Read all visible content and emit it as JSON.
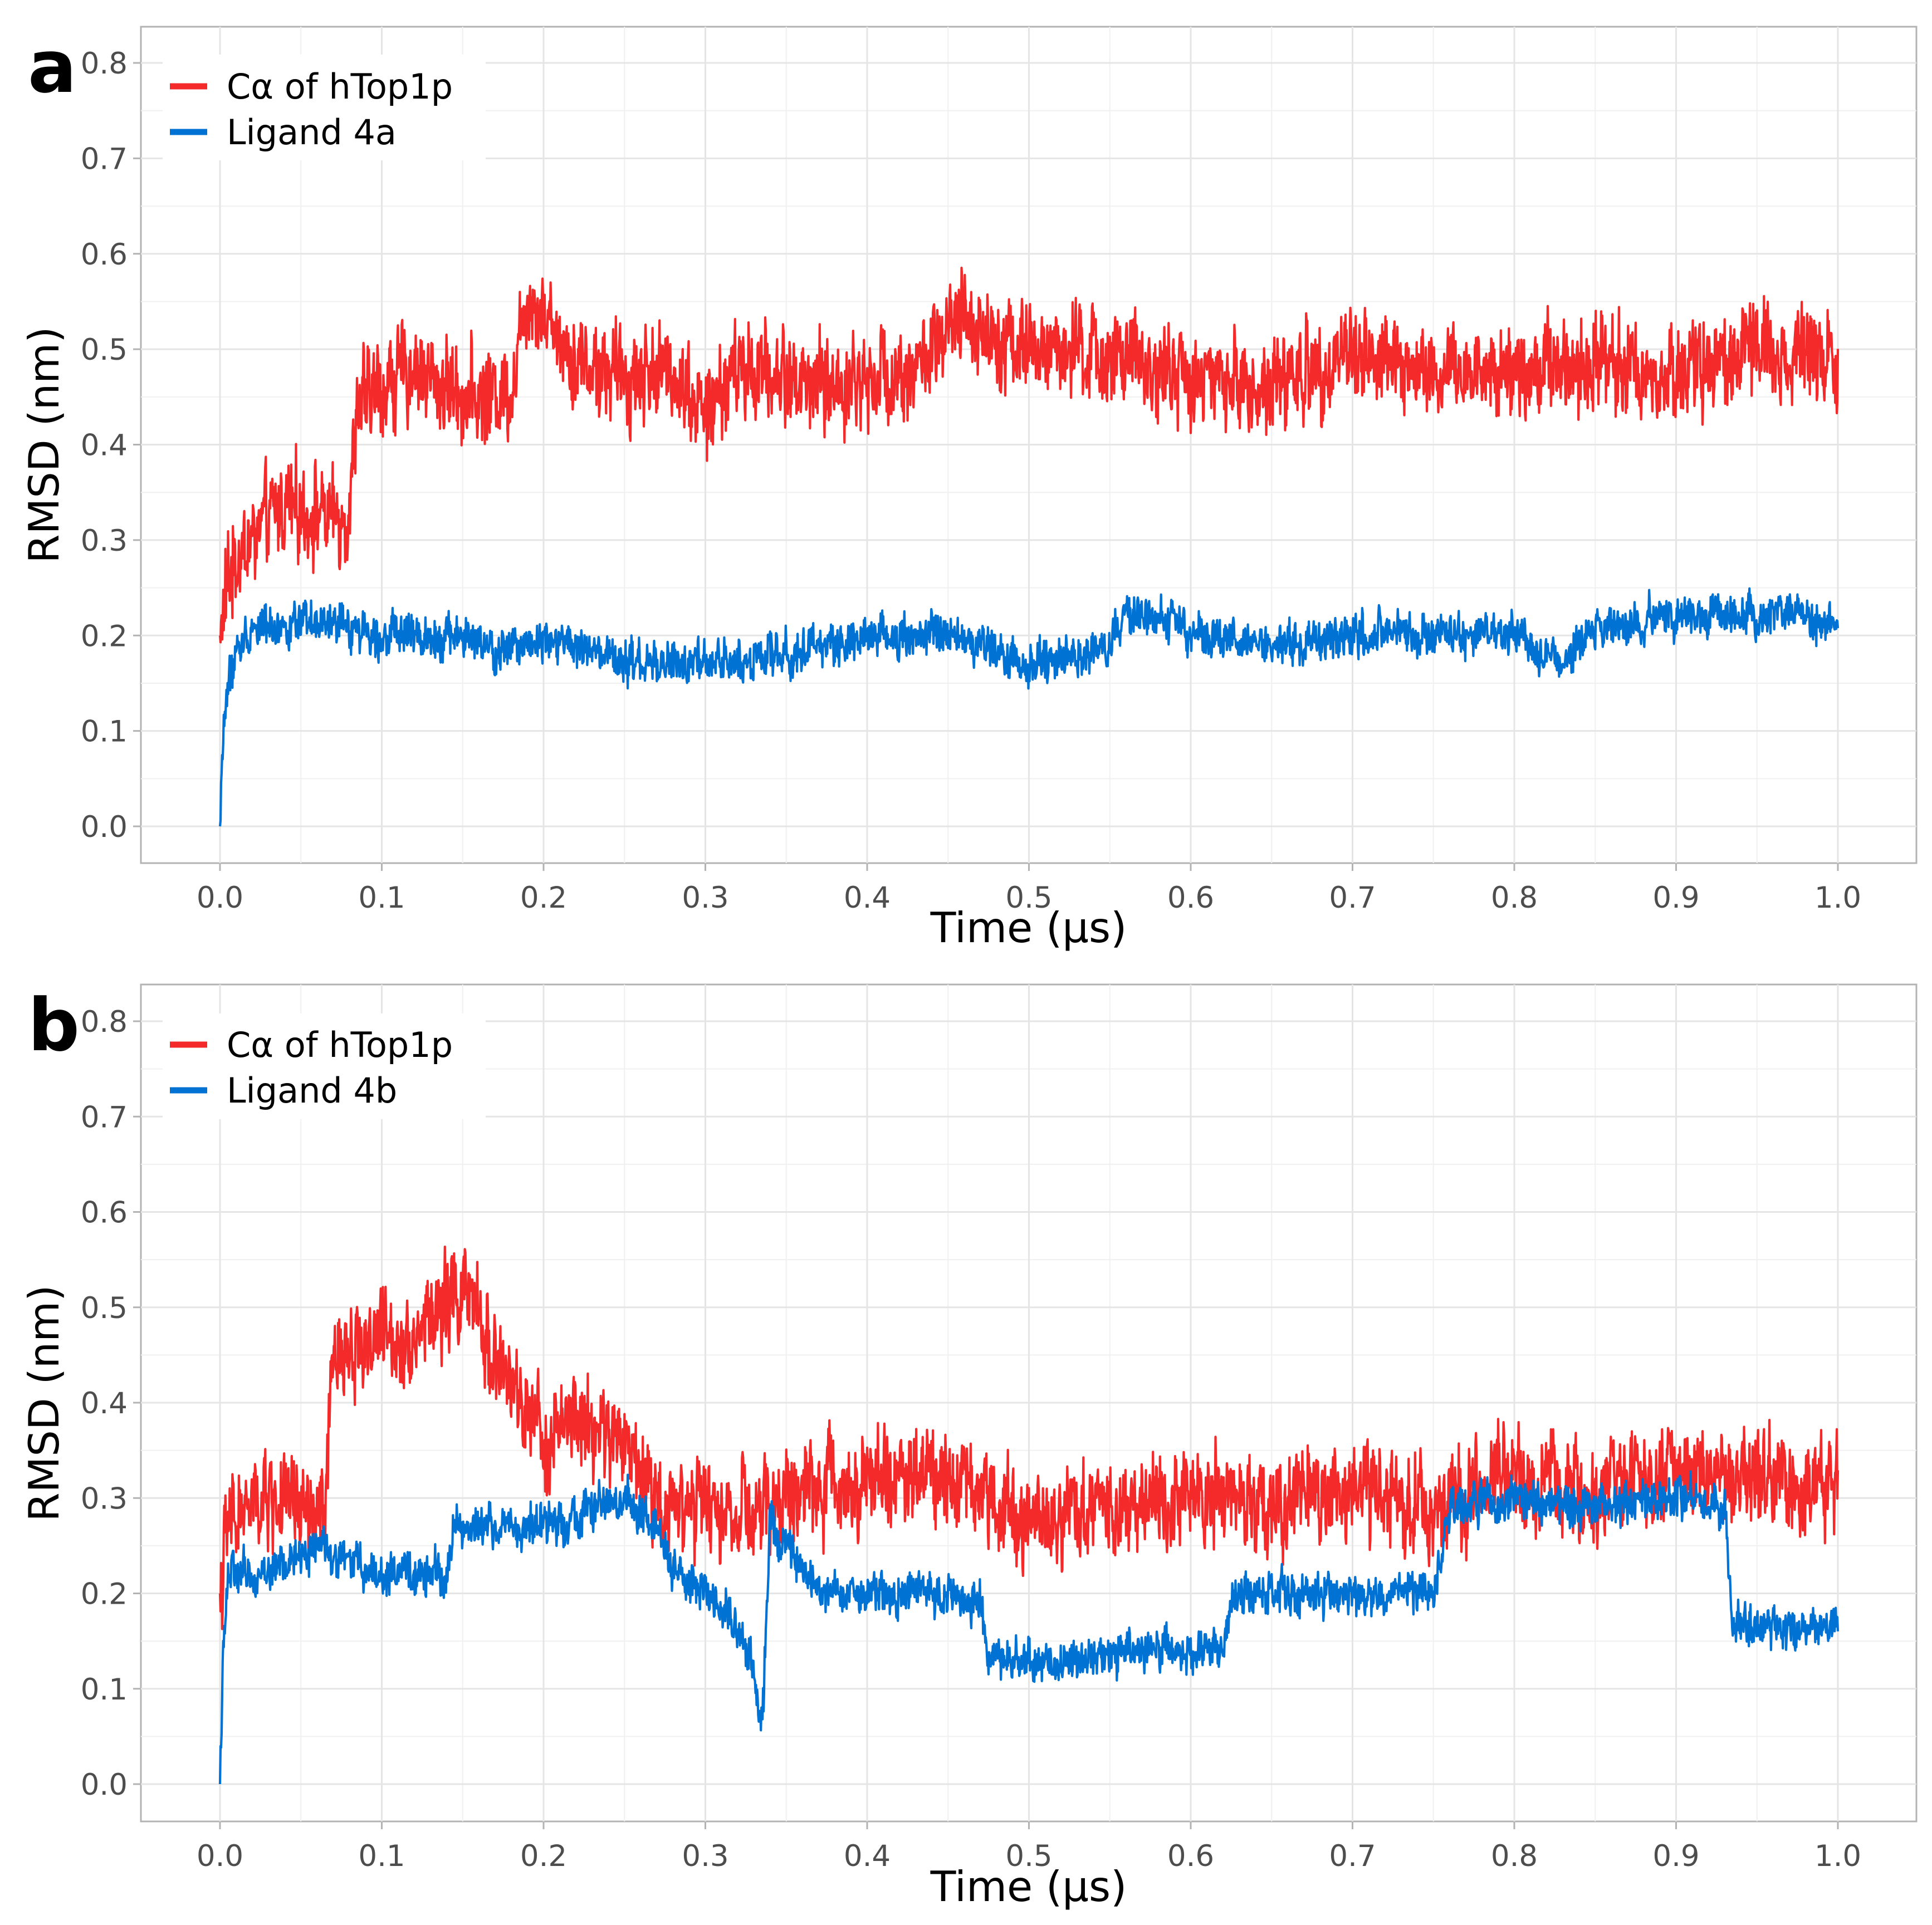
{
  "chart_data": [
    {
      "panel_label": "a",
      "type": "line",
      "xlabel": "Time (µs)",
      "ylabel": "RMSD (nm)",
      "xlim": [
        0.0,
        1.0
      ],
      "ylim": [
        0.0,
        0.8
      ],
      "x_ticks": [
        "0.0",
        "0.1",
        "0.2",
        "0.3",
        "0.4",
        "0.5",
        "0.6",
        "0.7",
        "0.8",
        "0.9",
        "1.0"
      ],
      "y_ticks": [
        "0.0",
        "0.1",
        "0.2",
        "0.3",
        "0.4",
        "0.5",
        "0.6",
        "0.7",
        "0.8"
      ],
      "grid": true,
      "legend_position": "top-left",
      "series": [
        {
          "name": "Cα of hTop1p",
          "color": "#F42A2A",
          "x": [
            0.0,
            0.005,
            0.01,
            0.02,
            0.03,
            0.04,
            0.05,
            0.06,
            0.07,
            0.08,
            0.085,
            0.1,
            0.12,
            0.14,
            0.16,
            0.18,
            0.19,
            0.2,
            0.22,
            0.25,
            0.28,
            0.3,
            0.32,
            0.35,
            0.38,
            0.4,
            0.43,
            0.46,
            0.5,
            0.55,
            0.6,
            0.65,
            0.7,
            0.75,
            0.8,
            0.85,
            0.9,
            0.95,
            1.0
          ],
          "y": [
            0.2,
            0.26,
            0.28,
            0.3,
            0.32,
            0.34,
            0.33,
            0.33,
            0.32,
            0.33,
            0.44,
            0.46,
            0.48,
            0.46,
            0.45,
            0.46,
            0.56,
            0.54,
            0.49,
            0.47,
            0.48,
            0.43,
            0.48,
            0.47,
            0.46,
            0.47,
            0.48,
            0.53,
            0.5,
            0.49,
            0.47,
            0.46,
            0.5,
            0.47,
            0.48,
            0.49,
            0.47,
            0.5,
            0.5
          ]
        },
        {
          "name": "Ligand 4a",
          "color": "#0072D4",
          "x": [
            0.0,
            0.002,
            0.005,
            0.01,
            0.02,
            0.05,
            0.08,
            0.1,
            0.15,
            0.17,
            0.2,
            0.23,
            0.25,
            0.3,
            0.35,
            0.4,
            0.45,
            0.5,
            0.55,
            0.56,
            0.58,
            0.6,
            0.65,
            0.7,
            0.75,
            0.8,
            0.83,
            0.85,
            0.9,
            0.95,
            1.0
          ],
          "y": [
            0.0,
            0.1,
            0.15,
            0.18,
            0.21,
            0.21,
            0.21,
            0.2,
            0.2,
            0.18,
            0.2,
            0.18,
            0.17,
            0.17,
            0.18,
            0.2,
            0.2,
            0.17,
            0.19,
            0.22,
            0.22,
            0.2,
            0.19,
            0.2,
            0.2,
            0.2,
            0.17,
            0.21,
            0.22,
            0.22,
            0.22
          ]
        }
      ]
    },
    {
      "panel_label": "b",
      "type": "line",
      "xlabel": "Time (µs)",
      "ylabel": "RMSD (nm)",
      "xlim": [
        0.0,
        1.0
      ],
      "ylim": [
        0.0,
        0.8
      ],
      "x_ticks": [
        "0.0",
        "0.1",
        "0.2",
        "0.3",
        "0.4",
        "0.5",
        "0.6",
        "0.7",
        "0.8",
        "0.9",
        "1.0"
      ],
      "y_ticks": [
        "0.0",
        "0.1",
        "0.2",
        "0.3",
        "0.4",
        "0.5",
        "0.6",
        "0.7",
        "0.8"
      ],
      "grid": true,
      "legend_position": "top-left",
      "series": [
        {
          "name": "Cα of hTop1p",
          "color": "#F42A2A",
          "x": [
            0.0,
            0.005,
            0.01,
            0.03,
            0.05,
            0.065,
            0.07,
            0.1,
            0.12,
            0.15,
            0.17,
            0.19,
            0.2,
            0.22,
            0.25,
            0.27,
            0.3,
            0.33,
            0.36,
            0.4,
            0.45,
            0.5,
            0.55,
            0.6,
            0.65,
            0.7,
            0.75,
            0.8,
            0.85,
            0.9,
            0.95,
            1.0
          ],
          "y": [
            0.2,
            0.27,
            0.28,
            0.3,
            0.29,
            0.28,
            0.45,
            0.47,
            0.47,
            0.52,
            0.45,
            0.38,
            0.36,
            0.38,
            0.36,
            0.3,
            0.29,
            0.28,
            0.31,
            0.32,
            0.33,
            0.28,
            0.29,
            0.31,
            0.29,
            0.31,
            0.29,
            0.32,
            0.3,
            0.33,
            0.32,
            0.31
          ]
        },
        {
          "name": "Ligand 4b",
          "color": "#0072D4",
          "x": [
            0.0,
            0.002,
            0.005,
            0.02,
            0.04,
            0.06,
            0.1,
            0.14,
            0.145,
            0.2,
            0.25,
            0.27,
            0.28,
            0.3,
            0.32,
            0.33,
            0.335,
            0.34,
            0.36,
            0.37,
            0.4,
            0.45,
            0.47,
            0.475,
            0.52,
            0.56,
            0.6,
            0.62,
            0.625,
            0.7,
            0.75,
            0.76,
            0.8,
            0.85,
            0.9,
            0.93,
            0.935,
            0.97,
            1.0
          ],
          "y": [
            0.0,
            0.15,
            0.22,
            0.22,
            0.23,
            0.25,
            0.22,
            0.22,
            0.27,
            0.27,
            0.3,
            0.27,
            0.22,
            0.2,
            0.17,
            0.12,
            0.06,
            0.27,
            0.22,
            0.2,
            0.2,
            0.2,
            0.19,
            0.13,
            0.13,
            0.14,
            0.14,
            0.14,
            0.2,
            0.2,
            0.2,
            0.29,
            0.3,
            0.29,
            0.3,
            0.29,
            0.17,
            0.16,
            0.17
          ]
        }
      ]
    }
  ]
}
